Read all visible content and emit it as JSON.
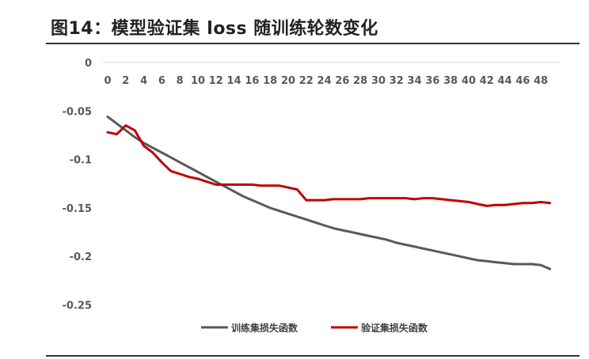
{
  "title": "图14：模型验证集 loss 随训练轮数变化",
  "chart_data": {
    "type": "line",
    "title": "图14：模型验证集 loss 随训练轮数变化",
    "xlabel": "",
    "ylabel": "",
    "x": [
      0,
      1,
      2,
      3,
      4,
      5,
      6,
      7,
      8,
      9,
      10,
      11,
      12,
      13,
      14,
      15,
      16,
      17,
      18,
      19,
      20,
      21,
      22,
      23,
      24,
      25,
      26,
      27,
      28,
      29,
      30,
      31,
      32,
      33,
      34,
      35,
      36,
      37,
      38,
      39,
      40,
      41,
      42,
      43,
      44,
      45,
      46,
      47,
      48,
      49
    ],
    "x_ticks": [
      "0",
      "2",
      "4",
      "6",
      "8",
      "10",
      "12",
      "14",
      "16",
      "18",
      "20",
      "22",
      "24",
      "26",
      "28",
      "30",
      "32",
      "34",
      "36",
      "38",
      "40",
      "42",
      "44",
      "46",
      "48"
    ],
    "y_ticks": [
      "0",
      "-0.05",
      "-0.1",
      "-0.15",
      "-0.2",
      "-0.25"
    ],
    "ylim": [
      -0.25,
      0
    ],
    "grid": "horizontal",
    "legend_position": "bottom",
    "series": [
      {
        "name": "训练集损失函数",
        "color": "#595959",
        "values": [
          -0.056,
          -0.063,
          -0.07,
          -0.077,
          -0.083,
          -0.088,
          -0.093,
          -0.098,
          -0.103,
          -0.108,
          -0.113,
          -0.118,
          -0.123,
          -0.128,
          -0.133,
          -0.138,
          -0.142,
          -0.146,
          -0.15,
          -0.153,
          -0.156,
          -0.159,
          -0.162,
          -0.165,
          -0.168,
          -0.171,
          -0.173,
          -0.175,
          -0.177,
          -0.179,
          -0.181,
          -0.183,
          -0.186,
          -0.188,
          -0.19,
          -0.192,
          -0.194,
          -0.196,
          -0.198,
          -0.2,
          -0.202,
          -0.204,
          -0.205,
          -0.206,
          -0.207,
          -0.208,
          -0.208,
          -0.208,
          -0.209,
          -0.213
        ]
      },
      {
        "name": "验证集损失函数",
        "color": "#C00000",
        "values": [
          -0.072,
          -0.074,
          -0.065,
          -0.07,
          -0.086,
          -0.093,
          -0.103,
          -0.112,
          -0.115,
          -0.118,
          -0.12,
          -0.123,
          -0.126,
          -0.126,
          -0.126,
          -0.126,
          -0.126,
          -0.127,
          -0.127,
          -0.127,
          -0.129,
          -0.131,
          -0.142,
          -0.142,
          -0.142,
          -0.141,
          -0.141,
          -0.141,
          -0.141,
          -0.14,
          -0.14,
          -0.14,
          -0.14,
          -0.14,
          -0.141,
          -0.14,
          -0.14,
          -0.141,
          -0.142,
          -0.143,
          -0.144,
          -0.146,
          -0.148,
          -0.147,
          -0.147,
          -0.146,
          -0.145,
          -0.145,
          -0.144,
          -0.145
        ]
      }
    ]
  }
}
